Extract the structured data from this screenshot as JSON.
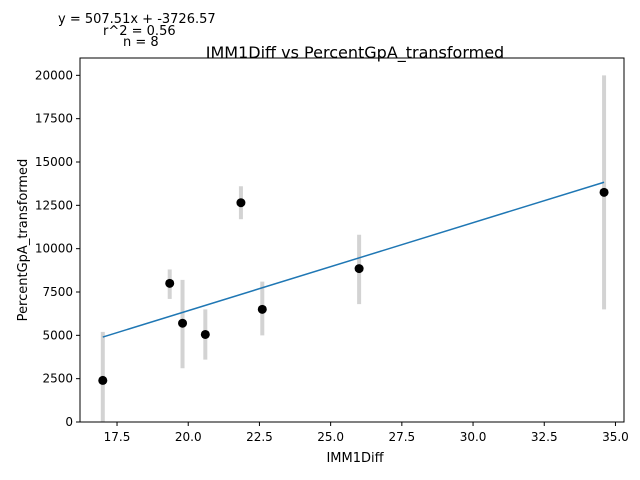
{
  "chart_data": {
    "type": "scatter",
    "title": "IMM1Diff vs PercentGpA_transformed",
    "xlabel": "IMM1Diff",
    "ylabel": "PercentGpA_transformed",
    "xlim": [
      16.2,
      35.3
    ],
    "ylim": [
      0,
      21000
    ],
    "xticks": [
      17.5,
      20.0,
      22.5,
      25.0,
      27.5,
      30.0,
      32.5,
      35.0
    ],
    "xtick_labels": [
      "17.5",
      "20.0",
      "22.5",
      "25.0",
      "27.5",
      "30.0",
      "32.5",
      "35.0"
    ],
    "yticks": [
      0,
      2500,
      5000,
      7500,
      10000,
      12500,
      15000,
      17500,
      20000
    ],
    "ytick_labels": [
      "0",
      "2500",
      "5000",
      "7500",
      "10000",
      "12500",
      "15000",
      "17500",
      "20000"
    ],
    "grid": false,
    "points": [
      {
        "x": 17.0,
        "y": 2400,
        "err_low": 0,
        "err_high": 5200
      },
      {
        "x": 19.35,
        "y": 8000,
        "err_low": 7100,
        "err_high": 8800
      },
      {
        "x": 19.8,
        "y": 5700,
        "err_low": 3100,
        "err_high": 8200
      },
      {
        "x": 20.6,
        "y": 5050,
        "err_low": 3600,
        "err_high": 6500
      },
      {
        "x": 21.85,
        "y": 12650,
        "err_low": 11700,
        "err_high": 13600
      },
      {
        "x": 22.6,
        "y": 6500,
        "err_low": 5000,
        "err_high": 8100
      },
      {
        "x": 26.0,
        "y": 8850,
        "err_low": 6800,
        "err_high": 10800
      },
      {
        "x": 34.6,
        "y": 13250,
        "err_low": 6500,
        "err_high": 20000
      }
    ],
    "fit": {
      "slope": 507.51,
      "intercept": -3726.57,
      "x_range": [
        17.0,
        34.6
      ]
    },
    "colors": {
      "points": "#000000",
      "error_bars": "#d3d3d3",
      "fit_line": "#1f77b4"
    },
    "annotations": {
      "equation": "y = 507.51x + -3726.57",
      "r2": "r^2 = 0.56",
      "n": "n = 8"
    }
  }
}
